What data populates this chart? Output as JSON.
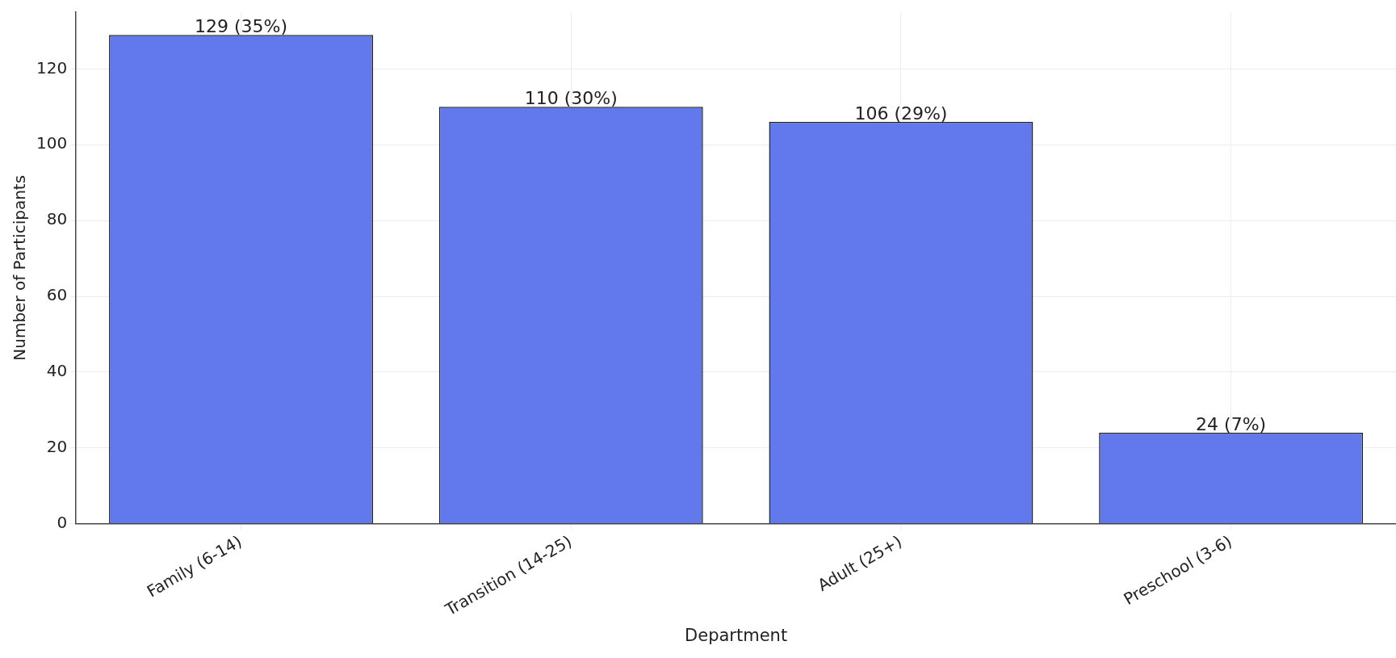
{
  "chart_data": {
    "type": "bar",
    "xlabel": "Department",
    "ylabel": "Number of Participants",
    "categories": [
      "Family (6-14)",
      "Transition (14-25)",
      "Adult (25+)",
      "Preschool (3-6)"
    ],
    "values": [
      129,
      110,
      106,
      24
    ],
    "value_labels": [
      "129 (35%)",
      "110 (30%)",
      "106 (29%)",
      "24 (7%)"
    ],
    "color": "#6279ee",
    "ylim": [
      0,
      135
    ],
    "yticks": [
      0,
      20,
      40,
      60,
      80,
      100,
      120
    ],
    "grid": true,
    "legend": false
  }
}
